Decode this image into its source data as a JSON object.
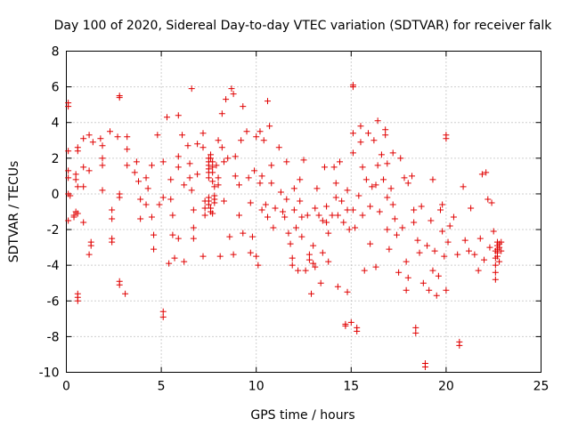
{
  "chart_data": {
    "type": "scatter",
    "title": "Day 100 of 2020, Sidereal Day-to-day VTEC variation (SDTVAR) for receiver falk",
    "xlabel": "GPS time / hours",
    "ylabel": "SDTVAR / TECUs",
    "xlim": [
      0,
      25
    ],
    "ylim": [
      -10,
      8
    ],
    "xticks": [
      0,
      5,
      10,
      15,
      20,
      25
    ],
    "yticks": [
      -10,
      -8,
      -6,
      -4,
      -2,
      0,
      2,
      4,
      6,
      8
    ],
    "grid": true,
    "marker": "plus",
    "series": [
      {
        "name": "SDTVAR",
        "color": "#e00000",
        "points": [
          [
            0.1,
            5.1
          ],
          [
            0.1,
            4.9
          ],
          [
            0.1,
            2.4
          ],
          [
            0.1,
            1.3
          ],
          [
            0.1,
            0.9
          ],
          [
            0.1,
            0.0
          ],
          [
            0.2,
            -0.1
          ],
          [
            0.1,
            -1.5
          ],
          [
            0.5,
            1.1
          ],
          [
            0.5,
            0.8
          ],
          [
            0.6,
            0.4
          ],
          [
            0.4,
            -1.2
          ],
          [
            0.5,
            -1.0
          ],
          [
            0.6,
            -1.1
          ],
          [
            0.4,
            -1.3
          ],
          [
            0.6,
            -5.6
          ],
          [
            0.6,
            -5.8
          ],
          [
            0.6,
            -6.0
          ],
          [
            0.6,
            2.6
          ],
          [
            0.6,
            2.4
          ],
          [
            0.9,
            3.1
          ],
          [
            0.9,
            1.5
          ],
          [
            0.9,
            0.4
          ],
          [
            0.9,
            -1.6
          ],
          [
            1.2,
            3.3
          ],
          [
            1.2,
            1.3
          ],
          [
            1.3,
            -2.7
          ],
          [
            1.3,
            -2.9
          ],
          [
            1.2,
            -3.4
          ],
          [
            1.4,
            2.9
          ],
          [
            1.8,
            3.1
          ],
          [
            1.9,
            2.7
          ],
          [
            1.9,
            2.0
          ],
          [
            1.9,
            1.6
          ],
          [
            1.9,
            0.2
          ],
          [
            2.3,
            3.5
          ],
          [
            2.4,
            -0.9
          ],
          [
            2.4,
            -1.4
          ],
          [
            2.4,
            -2.5
          ],
          [
            2.4,
            -2.7
          ],
          [
            2.8,
            5.5
          ],
          [
            2.8,
            5.4
          ],
          [
            2.7,
            3.2
          ],
          [
            2.8,
            0.0
          ],
          [
            2.8,
            -0.2
          ],
          [
            2.8,
            -4.9
          ],
          [
            2.8,
            -5.1
          ],
          [
            3.1,
            -5.6
          ],
          [
            3.2,
            3.2
          ],
          [
            3.2,
            2.5
          ],
          [
            3.2,
            1.6
          ],
          [
            3.6,
            1.2
          ],
          [
            3.8,
            0.7
          ],
          [
            3.9,
            -0.3
          ],
          [
            3.9,
            -1.4
          ],
          [
            3.7,
            1.8
          ],
          [
            4.2,
            0.9
          ],
          [
            4.3,
            0.3
          ],
          [
            4.2,
            -0.6
          ],
          [
            4.5,
            1.6
          ],
          [
            4.5,
            -1.3
          ],
          [
            4.6,
            -2.3
          ],
          [
            4.6,
            -3.1
          ],
          [
            4.8,
            3.3
          ],
          [
            4.9,
            -0.6
          ],
          [
            5.1,
            -6.6
          ],
          [
            5.1,
            -6.9
          ],
          [
            5.1,
            1.8
          ],
          [
            5.1,
            -0.2
          ],
          [
            5.3,
            4.3
          ],
          [
            5.4,
            -3.9
          ],
          [
            5.5,
            0.8
          ],
          [
            5.5,
            -0.3
          ],
          [
            5.6,
            -1.2
          ],
          [
            5.6,
            -2.3
          ],
          [
            5.7,
            -3.6
          ],
          [
            5.9,
            4.4
          ],
          [
            5.9,
            2.1
          ],
          [
            5.9,
            1.5
          ],
          [
            5.9,
            -2.5
          ],
          [
            6.1,
            3.3
          ],
          [
            6.2,
            0.5
          ],
          [
            6.2,
            -3.8
          ],
          [
            6.4,
            2.7
          ],
          [
            6.6,
            5.9
          ],
          [
            6.5,
            1.7
          ],
          [
            6.5,
            0.9
          ],
          [
            6.6,
            0.2
          ],
          [
            6.7,
            -0.9
          ],
          [
            6.7,
            -1.9
          ],
          [
            6.7,
            -2.5
          ],
          [
            6.9,
            2.8
          ],
          [
            6.9,
            1.1
          ],
          [
            7.2,
            3.4
          ],
          [
            7.2,
            2.6
          ],
          [
            7.2,
            -3.5
          ],
          [
            7.3,
            -0.4
          ],
          [
            7.3,
            -0.8
          ],
          [
            7.3,
            -1.2
          ],
          [
            7.5,
            2.0
          ],
          [
            7.5,
            1.8
          ],
          [
            7.5,
            1.6
          ],
          [
            7.5,
            1.4
          ],
          [
            7.5,
            1.2
          ],
          [
            7.5,
            0.9
          ],
          [
            7.5,
            -0.2
          ],
          [
            7.5,
            -0.4
          ],
          [
            7.5,
            -0.6
          ],
          [
            7.6,
            -0.8
          ],
          [
            7.6,
            -1.0
          ],
          [
            7.6,
            2.2
          ],
          [
            7.6,
            2.0
          ],
          [
            7.7,
            1.8
          ],
          [
            7.7,
            1.5
          ],
          [
            7.7,
            1.2
          ],
          [
            7.7,
            0.7
          ],
          [
            7.8,
            0.4
          ],
          [
            7.8,
            -0.1
          ],
          [
            7.8,
            -0.3
          ],
          [
            7.8,
            -0.5
          ],
          [
            7.7,
            -1.1
          ],
          [
            7.9,
            1.6
          ],
          [
            8.0,
            3.0
          ],
          [
            8.0,
            0.9
          ],
          [
            8.0,
            0.5
          ],
          [
            8.1,
            -3.5
          ],
          [
            8.2,
            4.5
          ],
          [
            8.2,
            2.6
          ],
          [
            8.3,
            1.8
          ],
          [
            8.3,
            -0.4
          ],
          [
            8.4,
            5.3
          ],
          [
            8.5,
            2.0
          ],
          [
            8.6,
            -2.4
          ],
          [
            8.7,
            5.9
          ],
          [
            8.8,
            5.6
          ],
          [
            8.9,
            2.1
          ],
          [
            8.9,
            1.0
          ],
          [
            8.8,
            -3.4
          ],
          [
            9.1,
            0.5
          ],
          [
            9.1,
            -1.2
          ],
          [
            9.2,
            3.0
          ],
          [
            9.3,
            4.9
          ],
          [
            9.3,
            -2.2
          ],
          [
            9.5,
            3.5
          ],
          [
            9.6,
            0.9
          ],
          [
            9.7,
            -0.5
          ],
          [
            9.7,
            -3.3
          ],
          [
            9.8,
            -2.4
          ],
          [
            9.9,
            1.3
          ],
          [
            10.0,
            3.2
          ],
          [
            10.0,
            -3.5
          ],
          [
            10.1,
            -4.0
          ],
          [
            10.2,
            3.5
          ],
          [
            10.2,
            0.6
          ],
          [
            10.3,
            1.0
          ],
          [
            10.4,
            3.0
          ],
          [
            10.3,
            -0.9
          ],
          [
            10.5,
            -0.6
          ],
          [
            10.6,
            5.2
          ],
          [
            10.7,
            3.8
          ],
          [
            10.6,
            -1.3
          ],
          [
            10.8,
            1.6
          ],
          [
            10.8,
            0.6
          ],
          [
            10.9,
            -1.9
          ],
          [
            11.0,
            -0.8
          ],
          [
            11.2,
            2.6
          ],
          [
            11.3,
            0.1
          ],
          [
            11.4,
            -1.0
          ],
          [
            11.5,
            -1.3
          ],
          [
            11.6,
            1.8
          ],
          [
            11.6,
            -0.3
          ],
          [
            11.7,
            -2.2
          ],
          [
            11.8,
            -2.8
          ],
          [
            11.9,
            -3.6
          ],
          [
            11.9,
            -4.0
          ],
          [
            12.0,
            0.3
          ],
          [
            12.0,
            -0.9
          ],
          [
            12.1,
            -1.9
          ],
          [
            12.2,
            -4.3
          ],
          [
            12.3,
            0.8
          ],
          [
            12.3,
            -0.4
          ],
          [
            12.4,
            -1.3
          ],
          [
            12.4,
            -2.4
          ],
          [
            12.5,
            1.9
          ],
          [
            12.6,
            -4.3
          ],
          [
            12.7,
            -1.2
          ],
          [
            12.8,
            -3.4
          ],
          [
            12.8,
            -3.7
          ],
          [
            12.9,
            -5.6
          ],
          [
            13.0,
            -2.9
          ],
          [
            13.0,
            -3.9
          ],
          [
            13.1,
            -0.8
          ],
          [
            13.1,
            -4.1
          ],
          [
            13.2,
            0.3
          ],
          [
            13.3,
            -1.2
          ],
          [
            13.4,
            -5.0
          ],
          [
            13.5,
            -3.3
          ],
          [
            13.5,
            -1.5
          ],
          [
            13.6,
            1.5
          ],
          [
            13.7,
            -0.7
          ],
          [
            13.7,
            -1.6
          ],
          [
            13.8,
            -2.2
          ],
          [
            13.8,
            -3.8
          ],
          [
            14.0,
            -1.2
          ],
          [
            14.1,
            1.5
          ],
          [
            14.2,
            0.6
          ],
          [
            14.2,
            -0.2
          ],
          [
            14.3,
            -5.2
          ],
          [
            14.3,
            -1.2
          ],
          [
            14.4,
            1.8
          ],
          [
            14.5,
            -0.4
          ],
          [
            14.6,
            -1.6
          ],
          [
            14.7,
            -7.4
          ],
          [
            14.7,
            -7.3
          ],
          [
            14.8,
            -5.5
          ],
          [
            14.8,
            0.2
          ],
          [
            14.8,
            -0.9
          ],
          [
            14.9,
            -2.0
          ],
          [
            15.0,
            -7.2
          ],
          [
            15.1,
            6.1
          ],
          [
            15.1,
            6.0
          ],
          [
            15.1,
            3.4
          ],
          [
            15.1,
            2.3
          ],
          [
            15.1,
            -0.9
          ],
          [
            15.2,
            -1.9
          ],
          [
            15.3,
            -7.5
          ],
          [
            15.3,
            -7.7
          ],
          [
            15.4,
            -0.1
          ],
          [
            15.5,
            3.8
          ],
          [
            15.5,
            2.9
          ],
          [
            15.6,
            1.5
          ],
          [
            15.6,
            -1.2
          ],
          [
            15.7,
            -4.3
          ],
          [
            15.8,
            0.8
          ],
          [
            15.9,
            3.4
          ],
          [
            16.0,
            -0.7
          ],
          [
            16.0,
            -2.8
          ],
          [
            16.1,
            0.4
          ],
          [
            16.2,
            3.0
          ],
          [
            16.3,
            0.5
          ],
          [
            16.3,
            -4.1
          ],
          [
            16.4,
            4.1
          ],
          [
            16.4,
            1.6
          ],
          [
            16.5,
            -1.0
          ],
          [
            16.6,
            2.2
          ],
          [
            16.7,
            0.8
          ],
          [
            16.8,
            3.6
          ],
          [
            16.8,
            3.3
          ],
          [
            16.9,
            1.7
          ],
          [
            16.9,
            -0.2
          ],
          [
            16.9,
            -2.0
          ],
          [
            17.0,
            -3.1
          ],
          [
            17.1,
            0.3
          ],
          [
            17.2,
            2.3
          ],
          [
            17.2,
            -0.6
          ],
          [
            17.3,
            -1.4
          ],
          [
            17.4,
            -2.3
          ],
          [
            17.5,
            -4.4
          ],
          [
            17.6,
            2.0
          ],
          [
            17.7,
            -1.9
          ],
          [
            17.8,
            0.9
          ],
          [
            17.9,
            -3.8
          ],
          [
            17.9,
            -5.4
          ],
          [
            18.0,
            0.6
          ],
          [
            18.0,
            -4.7
          ],
          [
            18.2,
            1.0
          ],
          [
            18.3,
            -0.9
          ],
          [
            18.3,
            -1.6
          ],
          [
            18.4,
            -7.5
          ],
          [
            18.4,
            -7.8
          ],
          [
            18.5,
            -2.6
          ],
          [
            18.6,
            -3.3
          ],
          [
            18.7,
            -0.7
          ],
          [
            18.8,
            -5.0
          ],
          [
            18.9,
            -9.5
          ],
          [
            18.9,
            -9.7
          ],
          [
            19.0,
            -2.9
          ],
          [
            19.1,
            -5.4
          ],
          [
            19.2,
            -1.5
          ],
          [
            19.3,
            0.8
          ],
          [
            19.3,
            -4.3
          ],
          [
            19.4,
            -3.2
          ],
          [
            19.5,
            -5.7
          ],
          [
            19.6,
            -4.6
          ],
          [
            19.7,
            -0.9
          ],
          [
            19.8,
            -0.6
          ],
          [
            19.8,
            -2.1
          ],
          [
            19.9,
            -3.5
          ],
          [
            20.0,
            3.3
          ],
          [
            20.0,
            3.1
          ],
          [
            20.0,
            -5.4
          ],
          [
            20.1,
            -2.7
          ],
          [
            20.2,
            -1.8
          ],
          [
            20.4,
            -1.3
          ],
          [
            20.6,
            -3.4
          ],
          [
            20.7,
            -8.3
          ],
          [
            20.7,
            -8.5
          ],
          [
            20.9,
            0.4
          ],
          [
            21.0,
            -2.6
          ],
          [
            21.2,
            -3.2
          ],
          [
            21.3,
            -0.8
          ],
          [
            21.5,
            -3.4
          ],
          [
            21.7,
            -4.3
          ],
          [
            21.8,
            -2.5
          ],
          [
            21.9,
            1.1
          ],
          [
            22.0,
            -3.7
          ],
          [
            22.1,
            1.2
          ],
          [
            22.2,
            -0.3
          ],
          [
            22.3,
            -3.0
          ],
          [
            22.4,
            -0.5
          ],
          [
            22.5,
            -2.1
          ],
          [
            22.6,
            -3.2
          ],
          [
            22.6,
            -3.6
          ],
          [
            22.6,
            -4.0
          ],
          [
            22.6,
            -4.4
          ],
          [
            22.6,
            -4.8
          ],
          [
            22.7,
            -2.7
          ],
          [
            22.7,
            -2.9
          ],
          [
            22.7,
            -3.1
          ],
          [
            22.7,
            -3.3
          ],
          [
            22.7,
            -3.5
          ],
          [
            22.8,
            -3.8
          ],
          [
            22.8,
            -3.0
          ],
          [
            22.8,
            -2.8
          ],
          [
            22.9,
            -2.7
          ],
          [
            22.9,
            -3.2
          ]
        ]
      }
    ]
  }
}
